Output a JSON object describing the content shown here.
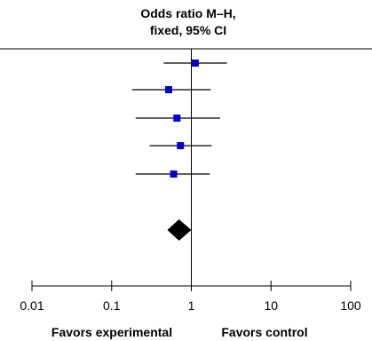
{
  "chart_data": {
    "type": "forest",
    "title_lines": [
      "Odds ratio M–H,",
      "fixed, 95% CI"
    ],
    "x_scale": "log",
    "xlim": [
      0.01,
      100
    ],
    "ticks": [
      {
        "value": 0.01,
        "label": "0.01"
      },
      {
        "value": 0.1,
        "label": "0.1"
      },
      {
        "value": 1,
        "label": "1"
      },
      {
        "value": 10,
        "label": "10"
      },
      {
        "value": 100,
        "label": "100"
      }
    ],
    "left_label": "Favors experimental",
    "right_label": "Favors control",
    "studies": [
      {
        "or": 1.12,
        "ci": [
          0.45,
          2.8
        ]
      },
      {
        "or": 0.52,
        "ci": [
          0.18,
          1.75
        ]
      },
      {
        "or": 0.66,
        "ci": [
          0.2,
          2.3
        ]
      },
      {
        "or": 0.73,
        "ci": [
          0.3,
          1.8
        ]
      },
      {
        "or": 0.6,
        "ci": [
          0.2,
          1.7
        ]
      }
    ],
    "pooled": {
      "or": 0.7,
      "ci": [
        0.5,
        1.0
      ]
    },
    "colors": {
      "study_marker": "#0000CC",
      "pooled": "#000000",
      "line": "#000000"
    }
  }
}
